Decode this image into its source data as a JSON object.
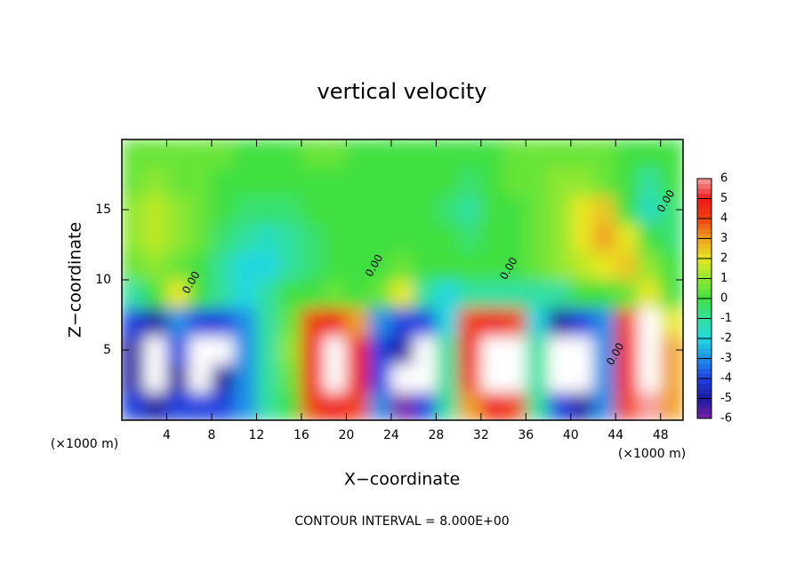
{
  "chart_data": {
    "type": "heatmap",
    "title": "vertical velocity",
    "x_label": "X−coordinate",
    "y_label": "Z−coordinate",
    "x_unit": "(×1000 m)",
    "y_unit": "(×1000 m)",
    "footnote": "CONTOUR INTERVAL = 8.000E+00",
    "xlim": [
      0,
      50
    ],
    "ylim": [
      0,
      20
    ],
    "xticks": [
      4,
      8,
      12,
      16,
      20,
      24,
      28,
      32,
      36,
      40,
      44,
      48
    ],
    "yticks": [
      5,
      10,
      15
    ],
    "x": [
      1,
      3,
      5,
      7,
      9,
      11,
      13,
      15,
      17,
      19,
      21,
      23,
      25,
      27,
      29,
      31,
      33,
      35,
      37,
      39,
      41,
      43,
      45,
      47,
      49
    ],
    "y": [
      1,
      3,
      5,
      7,
      9,
      11,
      13,
      15,
      17,
      19
    ],
    "z": [
      [
        -4,
        -5,
        -4,
        -4,
        -4,
        -3,
        -1,
        0,
        4,
        5,
        4,
        -3,
        -6,
        -4,
        -1,
        3,
        5,
        4,
        -1,
        -4,
        -5,
        -3,
        4,
        6,
        3
      ],
      [
        -5,
        -8,
        -5,
        -8,
        -5,
        -3,
        -1,
        0.5,
        5,
        8,
        5,
        -4,
        -8,
        -7,
        -1,
        4,
        8,
        7,
        -1,
        -7,
        -9,
        -3,
        5,
        9,
        3
      ],
      [
        -5,
        -8,
        -4,
        -7,
        -7,
        -3,
        -1,
        1,
        5,
        9,
        5,
        -4,
        -5,
        -8,
        -1,
        5,
        9,
        7,
        -1,
        -8,
        -8,
        -3,
        5,
        9,
        3
      ],
      [
        -4,
        -5,
        -3,
        -4,
        -4,
        -3,
        -1,
        0.5,
        4,
        5,
        3,
        -3,
        -4,
        -4,
        -2,
        4,
        5,
        4,
        -2,
        -5,
        -4,
        -3,
        4,
        7,
        2
      ],
      [
        -1,
        0,
        2,
        0,
        -1,
        -2,
        -1,
        0,
        0,
        0.5,
        0,
        0.5,
        2,
        -1,
        -2,
        -1,
        -1,
        -1,
        -1,
        -1,
        0,
        0,
        0.5,
        2,
        0
      ],
      [
        0.5,
        1,
        0.5,
        0,
        -1,
        -2,
        -2,
        -1,
        -0.5,
        0,
        0,
        0,
        0.5,
        0,
        0,
        0,
        0,
        0,
        0.5,
        1,
        1.5,
        2,
        2.5,
        1,
        0
      ],
      [
        1,
        1.5,
        1,
        0.5,
        -0.5,
        -1,
        -1.5,
        -1,
        -0.5,
        0,
        0,
        0,
        0,
        0,
        0,
        -0.5,
        0,
        0,
        0.5,
        1,
        2,
        3,
        2,
        0,
        -0.5
      ],
      [
        1,
        1.5,
        1,
        0.5,
        0,
        -0.5,
        -0.5,
        -0.5,
        0,
        0,
        0,
        0,
        0,
        0,
        -0.5,
        -1,
        0,
        0,
        0.5,
        1,
        2,
        2.5,
        0,
        -1.5,
        -0.5
      ],
      [
        0.5,
        1,
        0.5,
        0.5,
        0,
        0,
        0,
        0,
        0,
        0,
        0,
        0,
        0,
        0,
        0,
        -0.5,
        0,
        0.5,
        0.5,
        1,
        1,
        0.5,
        0,
        -1,
        0
      ],
      [
        0.5,
        0.5,
        0.5,
        0.5,
        0.5,
        0,
        0,
        0,
        0.5,
        0.5,
        0,
        0,
        0,
        0,
        0,
        0,
        0,
        0.5,
        0.5,
        0.5,
        0.5,
        0.5,
        0,
        0,
        0
      ]
    ],
    "colormap": [
      {
        "value": -6,
        "color": "#7a1fa8"
      },
      {
        "value": -5,
        "color": "#1a1aa0"
      },
      {
        "value": -4,
        "color": "#1f3fe0"
      },
      {
        "value": -3,
        "color": "#1f8fe8"
      },
      {
        "value": -2,
        "color": "#20d8e0"
      },
      {
        "value": -1,
        "color": "#30e0a0"
      },
      {
        "value": 0,
        "color": "#40e040"
      },
      {
        "value": 1,
        "color": "#90e830"
      },
      {
        "value": 2,
        "color": "#e8e820"
      },
      {
        "value": 3,
        "color": "#f0a020"
      },
      {
        "value": 4,
        "color": "#f04010"
      },
      {
        "value": 5,
        "color": "#f01818"
      },
      {
        "value": 6,
        "color": "#f8a0a0"
      }
    ],
    "over_color": "#ffffff",
    "colorbar_lim": [
      -6,
      6
    ],
    "colorbar_ticks": [
      -6,
      -5,
      -4,
      -3,
      -2,
      -1,
      0,
      1,
      2,
      3,
      4,
      5,
      6
    ],
    "annotations": [
      {
        "text": "0.00",
        "x": 6.2,
        "y": 9.8
      },
      {
        "text": "0.00",
        "x": 22.5,
        "y": 11
      },
      {
        "text": "0.00",
        "x": 34.5,
        "y": 10.8
      },
      {
        "text": "0.00",
        "x": 44,
        "y": 4.7
      },
      {
        "text": "0.00",
        "x": 48.5,
        "y": 15.6
      }
    ]
  }
}
